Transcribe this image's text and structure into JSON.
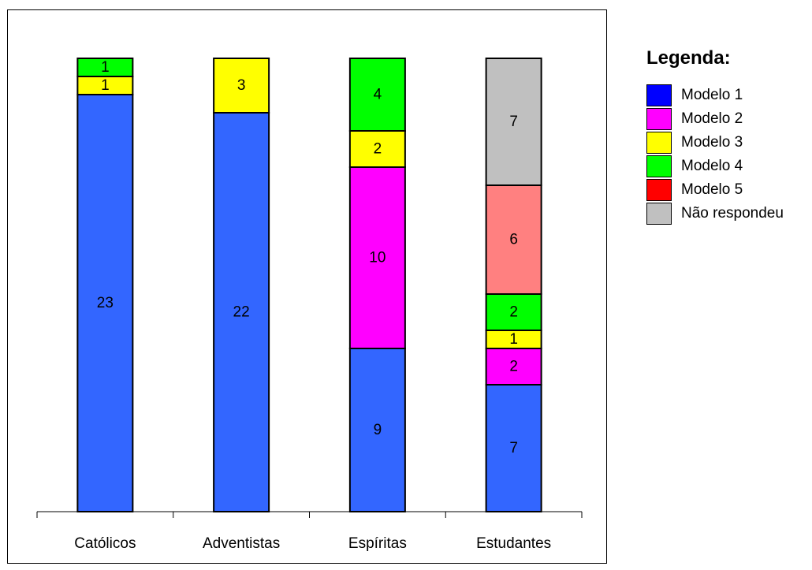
{
  "chart_data": {
    "type": "bar",
    "stacked": true,
    "title": "",
    "categories": [
      "Católicos",
      "Adventistas",
      "Espíritas",
      "Estudantes"
    ],
    "series": [
      {
        "name": "Modelo 1",
        "legend_color": "#0000FF",
        "bar_color": "#3366FF",
        "values": [
          23,
          22,
          9,
          7
        ]
      },
      {
        "name": "Modelo 2",
        "legend_color": "#FF00FF",
        "bar_color": "#FF00FF",
        "values": [
          0,
          0,
          10,
          2
        ]
      },
      {
        "name": "Modelo 3",
        "legend_color": "#FFFF00",
        "bar_color": "#FFFF00",
        "values": [
          1,
          3,
          2,
          1
        ]
      },
      {
        "name": "Modelo 4",
        "legend_color": "#00FF00",
        "bar_color": "#00FF00",
        "values": [
          1,
          0,
          4,
          2
        ]
      },
      {
        "name": "Modelo 5",
        "legend_color": "#FF0000",
        "bar_color": "#FF8080",
        "values": [
          0,
          0,
          0,
          6
        ]
      },
      {
        "name": "Não respondeu",
        "legend_color": "#C0C0C0",
        "bar_color": "#C0C0C0",
        "values": [
          0,
          0,
          0,
          7
        ]
      }
    ],
    "ylim": [
      0,
      25
    ],
    "grid": false,
    "legend_placement": "right"
  },
  "legend": {
    "title": "Legenda:"
  }
}
